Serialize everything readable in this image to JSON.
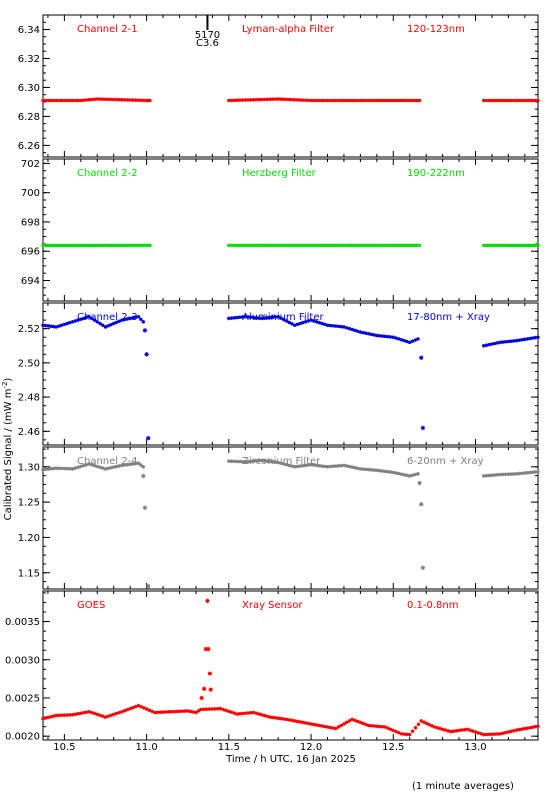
{
  "chart_data": {
    "type": "scatter",
    "xlabel": "Time / h UTC, 16 Jan 2025",
    "ylabel": "Calibrated Signal / (mW m",
    "ylabel_superscript": "-2",
    "ylabel_close": ")",
    "xlim": [
      10.37,
      13.38
    ],
    "xticks": [
      10.5,
      11.0,
      11.5,
      12.0,
      12.5,
      13.0
    ],
    "xtick_labels": [
      "10.5",
      "11.0",
      "11.5",
      "12.0",
      "12.5",
      "13.0"
    ],
    "footnote": "(1 minute averages)",
    "flare_marker": {
      "x": 11.37,
      "label_top": "5170",
      "label_bottom": "C3.6"
    },
    "panels": [
      {
        "channel": "Channel 2-1",
        "filter": "Lyman-alpha Filter",
        "band": "120-123nm",
        "color": "#ff0000",
        "ylim": [
          6.252,
          6.35
        ],
        "yticks": [
          6.26,
          6.28,
          6.3,
          6.32,
          6.34
        ],
        "ytick_labels": [
          "6.26",
          "6.28",
          "6.30",
          "6.32",
          "6.34"
        ],
        "segments": [
          {
            "x": [
              10.37,
              10.6,
              10.7,
              11.0,
              11.02
            ],
            "y": [
              6.291,
              6.291,
              6.292,
              6.291,
              6.291
            ]
          },
          {
            "x": [
              11.5,
              11.8,
              12.0,
              12.4,
              12.66
            ],
            "y": [
              6.291,
              6.292,
              6.291,
              6.291,
              6.291
            ]
          },
          {
            "x": [
              13.05,
              13.2,
              13.38
            ],
            "y": [
              6.291,
              6.291,
              6.291
            ]
          }
        ],
        "outliers": []
      },
      {
        "channel": "Channel 2-2",
        "filter": "Herzberg Filter",
        "band": "190-222nm",
        "color": "#00dd00",
        "ylim": [
          692.6,
          702.3
        ],
        "yticks": [
          694,
          696,
          698,
          700,
          702
        ],
        "ytick_labels": [
          "694",
          "696",
          "698",
          "700",
          "702"
        ],
        "segments": [
          {
            "x": [
              10.37,
              10.7,
              11.02
            ],
            "y": [
              696.4,
              696.4,
              696.4
            ]
          },
          {
            "x": [
              11.5,
              12.0,
              12.66
            ],
            "y": [
              696.4,
              696.4,
              696.4
            ]
          },
          {
            "x": [
              13.05,
              13.38
            ],
            "y": [
              696.4,
              696.4
            ]
          }
        ],
        "outliers": []
      },
      {
        "channel": "Channel 2-3",
        "filter": "Aluminium Filter",
        "band": "17-80nm + Xray",
        "color": "#0000dd",
        "ylim": [
          2.452,
          2.535
        ],
        "yticks": [
          2.46,
          2.48,
          2.5,
          2.52
        ],
        "ytick_labels": [
          "2.46",
          "2.48",
          "2.50",
          "2.52"
        ],
        "segments": [
          {
            "x": [
              10.37,
              10.45,
              10.55,
              10.65,
              10.75,
              10.85,
              10.95,
              10.98
            ],
            "y": [
              2.522,
              2.521,
              2.524,
              2.527,
              2.521,
              2.525,
              2.527,
              2.524
            ]
          },
          {
            "x": [
              11.5,
              11.6,
              11.7,
              11.8,
              11.9,
              12.0,
              12.1,
              12.2,
              12.3,
              12.4,
              12.5,
              12.6,
              12.65
            ],
            "y": [
              2.526,
              2.527,
              2.526,
              2.527,
              2.522,
              2.525,
              2.522,
              2.521,
              2.518,
              2.516,
              2.515,
              2.512,
              2.514
            ]
          },
          {
            "x": [
              13.05,
              13.15,
              13.25,
              13.38
            ],
            "y": [
              2.51,
              2.512,
              2.513,
              2.515
            ]
          }
        ],
        "outliers": [
          {
            "x": 10.99,
            "y": 2.519
          },
          {
            "x": 11.0,
            "y": 2.505
          },
          {
            "x": 11.01,
            "y": 2.456
          },
          {
            "x": 12.67,
            "y": 2.503
          },
          {
            "x": 12.68,
            "y": 2.462
          }
        ]
      },
      {
        "channel": "Channel 2-4",
        "filter": "Zirconium Filter",
        "band": "6-20nm + Xray",
        "color": "#808080",
        "ylim": [
          1.127,
          1.328
        ],
        "yticks": [
          1.15,
          1.2,
          1.25,
          1.3
        ],
        "ytick_labels": [
          "1.15",
          "1.20",
          "1.25",
          "1.30"
        ],
        "segments": [
          {
            "x": [
              10.37,
              10.45,
              10.55,
              10.65,
              10.75,
              10.85,
              10.95,
              10.98
            ],
            "y": [
              1.296,
              1.298,
              1.297,
              1.304,
              1.297,
              1.302,
              1.305,
              1.3
            ]
          },
          {
            "x": [
              11.5,
              11.6,
              11.7,
              11.8,
              11.9,
              12.0,
              12.1,
              12.2,
              12.3,
              12.4,
              12.5,
              12.6,
              12.65
            ],
            "y": [
              1.308,
              1.307,
              1.309,
              1.306,
              1.3,
              1.303,
              1.3,
              1.302,
              1.297,
              1.295,
              1.292,
              1.287,
              1.29
            ]
          },
          {
            "x": [
              13.05,
              13.15,
              13.25,
              13.38
            ],
            "y": [
              1.287,
              1.289,
              1.29,
              1.293
            ]
          }
        ],
        "outliers": [
          {
            "x": 10.98,
            "y": 1.287
          },
          {
            "x": 10.99,
            "y": 1.242
          },
          {
            "x": 11.01,
            "y": 1.131
          },
          {
            "x": 12.66,
            "y": 1.277
          },
          {
            "x": 12.67,
            "y": 1.247
          },
          {
            "x": 12.68,
            "y": 1.157
          }
        ]
      },
      {
        "channel": "GOES",
        "filter": "Xray Sensor",
        "band": "0.1-0.8nm",
        "color": "#ff0000",
        "ylim": [
          0.00195,
          0.0039
        ],
        "yticks": [
          0.002,
          0.0025,
          0.003,
          0.0035
        ],
        "ytick_labels": [
          "0.0020",
          "0.0025",
          "0.0030",
          "0.0035"
        ],
        "segments": [
          {
            "x": [
              10.37,
              10.45,
              10.55,
              10.65,
              10.75,
              10.85,
              10.95,
              11.05,
              11.15,
              11.25,
              11.3,
              11.33,
              11.45,
              11.55,
              11.65,
              11.75,
              11.85,
              11.95,
              12.05,
              12.15,
              12.25,
              12.35,
              12.45,
              12.55,
              12.6,
              12.67,
              12.75,
              12.85,
              12.95,
              13.05,
              13.15,
              13.25,
              13.38
            ],
            "y": [
              0.00223,
              0.00227,
              0.00228,
              0.00232,
              0.00225,
              0.00232,
              0.0024,
              0.00231,
              0.00232,
              0.00233,
              0.00231,
              0.00235,
              0.00236,
              0.00229,
              0.00231,
              0.00225,
              0.00222,
              0.00218,
              0.00214,
              0.0021,
              0.00222,
              0.00214,
              0.00212,
              0.00203,
              0.00202,
              0.0022,
              0.00212,
              0.00206,
              0.00209,
              0.00202,
              0.00203,
              0.00208,
              0.00213
            ]
          }
        ],
        "outliers": [
          {
            "x": 11.335,
            "y": 0.0025
          },
          {
            "x": 11.35,
            "y": 0.00262
          },
          {
            "x": 11.36,
            "y": 0.00314
          },
          {
            "x": 11.375,
            "y": 0.00314
          },
          {
            "x": 11.385,
            "y": 0.00282
          },
          {
            "x": 11.39,
            "y": 0.00261
          },
          {
            "x": 11.37,
            "y": 0.00377
          }
        ]
      }
    ]
  }
}
